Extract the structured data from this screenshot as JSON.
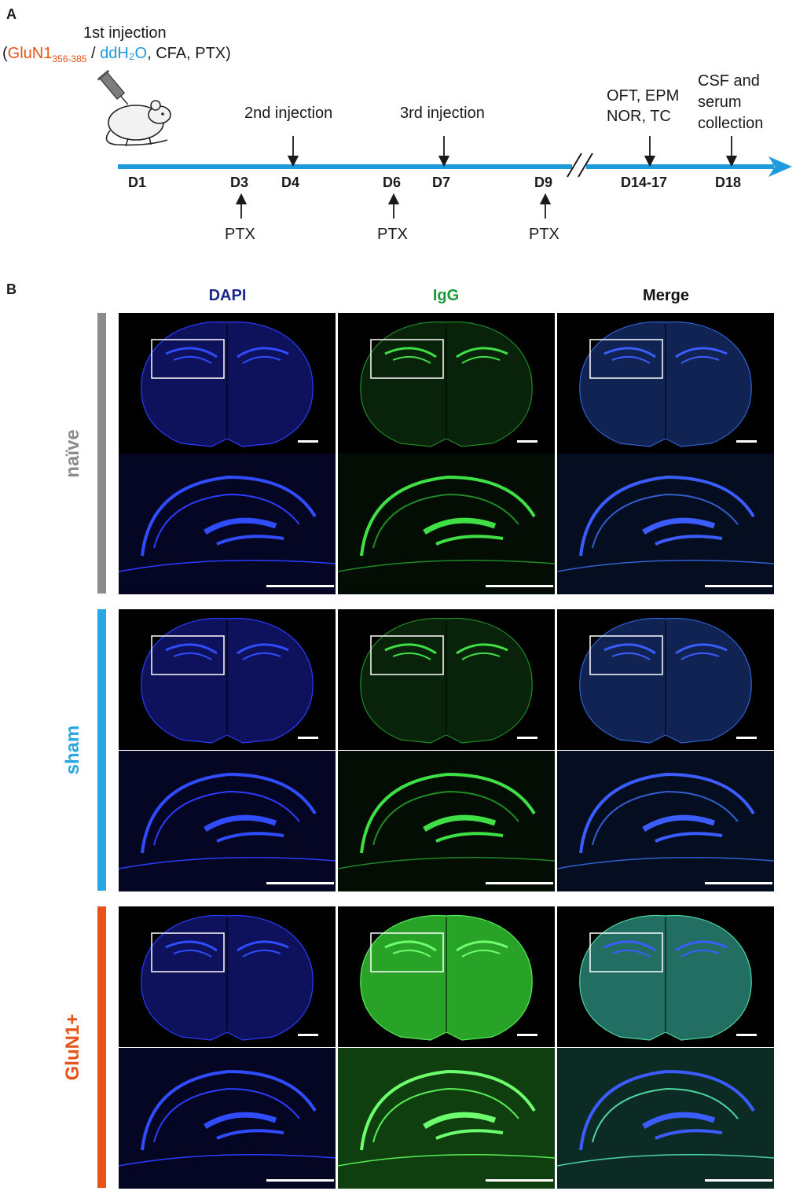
{
  "panel_a": {
    "label": "A",
    "first_injection": "1st injection",
    "reagents": {
      "open": "(",
      "gluN1": "GluN1",
      "gluN1_sub": "356-385",
      "sep": " / ",
      "ddh2o": "ddH₂O",
      "rest": ", CFA, PTX)"
    },
    "second_injection": "2nd injection",
    "third_injection": "3rd injection",
    "behavior_line1": "OFT, EPM",
    "behavior_line2": "NOR, TC",
    "csf_line1": "CSF and",
    "csf_line2": "serum",
    "csf_line3": "collection",
    "days": [
      "D1",
      "D3",
      "D4",
      "D6",
      "D7",
      "D9",
      "D14-17",
      "D18"
    ],
    "ptx": [
      "PTX",
      "PTX",
      "PTX"
    ],
    "colors": {
      "timeline": "#1e9bdc",
      "gluN1": "#e8531a",
      "ddh2o": "#1e9bdc"
    }
  },
  "panel_b": {
    "label": "B",
    "columns": [
      {
        "label": "DAPI",
        "color": "#1a2a8c"
      },
      {
        "label": "IgG",
        "color": "#1a9a3a"
      },
      {
        "label": "Merge",
        "color": "#111111"
      }
    ],
    "rows": [
      {
        "label": "naïve",
        "color": "#8c8c8c",
        "igg_level": "low"
      },
      {
        "label": "sham",
        "color": "#2aa7e2",
        "igg_level": "low"
      },
      {
        "label": "GluN1+",
        "color": "#e8531a",
        "igg_level": "high"
      }
    ]
  }
}
